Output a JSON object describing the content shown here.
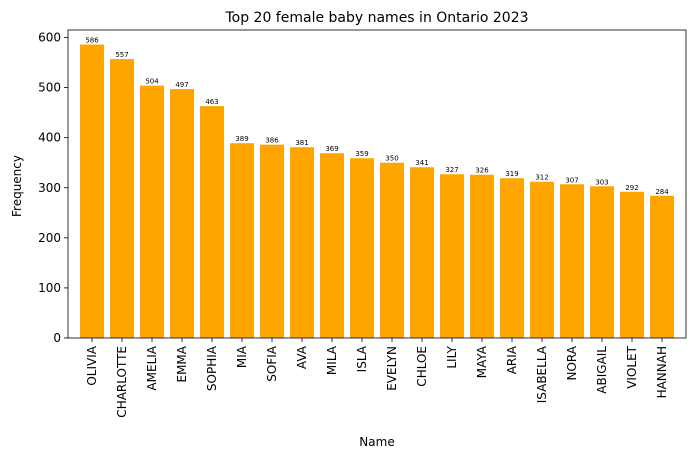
{
  "chart_data": {
    "type": "bar",
    "title": "Top 20 female baby names in Ontario 2023",
    "xlabel": "Name",
    "ylabel": "Frequency",
    "ylim": [
      0,
      615
    ],
    "yticks": [
      0,
      100,
      200,
      300,
      400,
      500,
      600
    ],
    "grid": false,
    "bar_color": "#FFA500",
    "categories": [
      "OLIVIA",
      "CHARLOTTE",
      "AMELIA",
      "EMMA",
      "SOPHIA",
      "MIA",
      "SOFIA",
      "AVA",
      "MILA",
      "ISLA",
      "EVELYN",
      "CHLOE",
      "LILY",
      "MAYA",
      "ARIA",
      "ISABELLA",
      "NORA",
      "ABIGAIL",
      "VIOLET",
      "HANNAH"
    ],
    "values": [
      586,
      557,
      504,
      497,
      463,
      389,
      386,
      381,
      369,
      359,
      350,
      341,
      327,
      326,
      319,
      312,
      307,
      303,
      292,
      284
    ]
  }
}
